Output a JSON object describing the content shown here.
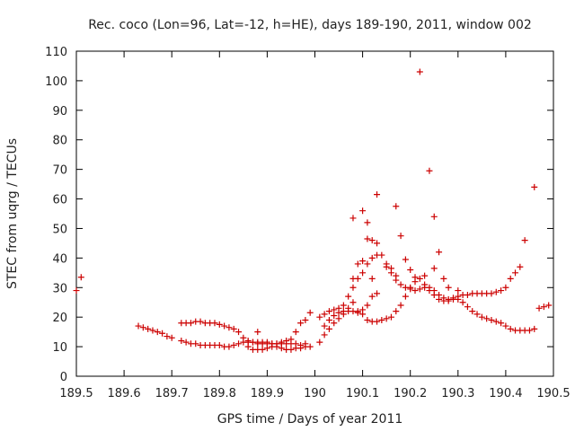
{
  "chart_data": {
    "type": "scatter",
    "title": "Rec. coco (Lon=96, Lat=-12, h=HE), days 189-190, 2011, window 002",
    "xlabel": "GPS time / Days of year 2011",
    "ylabel": "STEC from uqrg / TECUs",
    "xlim": [
      189.5,
      190.5
    ],
    "ylim": [
      0,
      110
    ],
    "xticks": [
      189.5,
      189.6,
      189.7,
      189.8,
      189.9,
      190,
      190.1,
      190.2,
      190.3,
      190.4,
      190.5
    ],
    "xtick_labels": [
      "189.5",
      "189.6",
      "189.7",
      "189.8",
      "189.9",
      "190",
      "190.1",
      "190.2",
      "190.3",
      "190.4",
      "190.5"
    ],
    "yticks": [
      0,
      10,
      20,
      30,
      40,
      50,
      60,
      70,
      80,
      90,
      100,
      110
    ],
    "ytick_labels": [
      "0",
      "10",
      "20",
      "30",
      "40",
      "50",
      "60",
      "70",
      "80",
      "90",
      "100",
      "110"
    ],
    "grid": false,
    "marker": "+",
    "color": "#cc0000",
    "points": [
      [
        189.5,
        29
      ],
      [
        189.51,
        33.5
      ],
      [
        189.63,
        17
      ],
      [
        189.64,
        16.5
      ],
      [
        189.65,
        16
      ],
      [
        189.66,
        15.5
      ],
      [
        189.67,
        15
      ],
      [
        189.68,
        14.5
      ],
      [
        189.69,
        13.5
      ],
      [
        189.7,
        13
      ],
      [
        189.72,
        12
      ],
      [
        189.73,
        11.5
      ],
      [
        189.74,
        11
      ],
      [
        189.75,
        11
      ],
      [
        189.76,
        10.5
      ],
      [
        189.77,
        10.5
      ],
      [
        189.78,
        10.5
      ],
      [
        189.79,
        10.5
      ],
      [
        189.8,
        10.5
      ],
      [
        189.81,
        10
      ],
      [
        189.82,
        10
      ],
      [
        189.83,
        10.5
      ],
      [
        189.84,
        11
      ],
      [
        189.85,
        11.5
      ],
      [
        189.86,
        11.5
      ],
      [
        189.87,
        11.5
      ],
      [
        189.88,
        11.5
      ],
      [
        189.89,
        11.5
      ],
      [
        189.9,
        11.5
      ],
      [
        189.91,
        11
      ],
      [
        189.92,
        11
      ],
      [
        189.93,
        11
      ],
      [
        189.94,
        11
      ],
      [
        189.95,
        11
      ],
      [
        189.96,
        11
      ],
      [
        189.97,
        10.5
      ],
      [
        189.98,
        11
      ],
      [
        189.72,
        18
      ],
      [
        189.73,
        18
      ],
      [
        189.74,
        18
      ],
      [
        189.75,
        18.5
      ],
      [
        189.76,
        18.5
      ],
      [
        189.77,
        18
      ],
      [
        189.78,
        18
      ],
      [
        189.79,
        18
      ],
      [
        189.8,
        17.5
      ],
      [
        189.81,
        17
      ],
      [
        189.82,
        16.5
      ],
      [
        189.83,
        16
      ],
      [
        189.84,
        15
      ],
      [
        189.85,
        13
      ],
      [
        189.86,
        12
      ],
      [
        189.87,
        11.5
      ],
      [
        189.88,
        11
      ],
      [
        189.89,
        11
      ],
      [
        189.9,
        11
      ],
      [
        189.91,
        11
      ],
      [
        189.92,
        11
      ],
      [
        189.93,
        11.5
      ],
      [
        189.94,
        12
      ],
      [
        189.95,
        12.5
      ],
      [
        189.96,
        15
      ],
      [
        189.97,
        18
      ],
      [
        189.98,
        19
      ],
      [
        189.99,
        21.5
      ],
      [
        189.86,
        10
      ],
      [
        189.87,
        9
      ],
      [
        189.88,
        9
      ],
      [
        189.89,
        9
      ],
      [
        189.9,
        9.5
      ],
      [
        189.91,
        10
      ],
      [
        189.92,
        10
      ],
      [
        189.93,
        9.5
      ],
      [
        189.94,
        9
      ],
      [
        189.95,
        9
      ],
      [
        189.96,
        9.5
      ],
      [
        189.97,
        9.5
      ],
      [
        189.98,
        10
      ],
      [
        189.99,
        10
      ],
      [
        189.88,
        15
      ],
      [
        190.01,
        11.5
      ],
      [
        190.02,
        14
      ],
      [
        190.03,
        16
      ],
      [
        190.04,
        18
      ],
      [
        190.05,
        19.5
      ],
      [
        190.06,
        21
      ],
      [
        190.07,
        22
      ],
      [
        190.08,
        22
      ],
      [
        190.09,
        21.5
      ],
      [
        190.1,
        21
      ],
      [
        190.11,
        19
      ],
      [
        190.12,
        18.5
      ],
      [
        190.13,
        18.5
      ],
      [
        190.14,
        19
      ],
      [
        190.15,
        19.5
      ],
      [
        190.16,
        20
      ],
      [
        190.17,
        22
      ],
      [
        190.18,
        24
      ],
      [
        190.19,
        27
      ],
      [
        190.2,
        30
      ],
      [
        190.21,
        32
      ],
      [
        190.22,
        33
      ],
      [
        190.23,
        31
      ],
      [
        190.24,
        29
      ],
      [
        190.25,
        27.5
      ],
      [
        190.26,
        26
      ],
      [
        190.27,
        25.5
      ],
      [
        190.28,
        25.5
      ],
      [
        190.29,
        26
      ],
      [
        190.3,
        26
      ],
      [
        190.31,
        25
      ],
      [
        190.32,
        23.5
      ],
      [
        190.33,
        22
      ],
      [
        190.34,
        21
      ],
      [
        190.35,
        20
      ],
      [
        190.36,
        19.5
      ],
      [
        190.37,
        19
      ],
      [
        190.38,
        18.5
      ],
      [
        190.39,
        18
      ],
      [
        190.4,
        17
      ],
      [
        190.41,
        16
      ],
      [
        190.42,
        15.5
      ],
      [
        190.43,
        15.5
      ],
      [
        190.44,
        15.5
      ],
      [
        190.45,
        15.5
      ],
      [
        190.46,
        16
      ],
      [
        190.01,
        20
      ],
      [
        190.02,
        21
      ],
      [
        190.03,
        22
      ],
      [
        190.04,
        22.5
      ],
      [
        190.05,
        23
      ],
      [
        190.06,
        24
      ],
      [
        190.07,
        27
      ],
      [
        190.08,
        30
      ],
      [
        190.09,
        33
      ],
      [
        190.1,
        35
      ],
      [
        190.11,
        38
      ],
      [
        190.12,
        40
      ],
      [
        190.13,
        41
      ],
      [
        190.14,
        41
      ],
      [
        190.15,
        38
      ],
      [
        190.16,
        35
      ],
      [
        190.17,
        32.5
      ],
      [
        190.18,
        31
      ],
      [
        190.19,
        30
      ],
      [
        190.2,
        29.5
      ],
      [
        190.21,
        29
      ],
      [
        190.22,
        29.5
      ],
      [
        190.23,
        30
      ],
      [
        190.24,
        30
      ],
      [
        190.25,
        29
      ],
      [
        190.26,
        27.5
      ],
      [
        190.27,
        26.5
      ],
      [
        190.28,
        26
      ],
      [
        190.29,
        26.5
      ],
      [
        190.3,
        27
      ],
      [
        190.31,
        27.5
      ],
      [
        190.32,
        27.5
      ],
      [
        190.33,
        28
      ],
      [
        190.34,
        28
      ],
      [
        190.35,
        28
      ],
      [
        190.36,
        28
      ],
      [
        190.37,
        28
      ],
      [
        190.38,
        28.5
      ],
      [
        190.39,
        29
      ],
      [
        190.4,
        30
      ],
      [
        190.41,
        33
      ],
      [
        190.42,
        35
      ],
      [
        190.43,
        37
      ],
      [
        190.44,
        46
      ],
      [
        190.46,
        64
      ],
      [
        190.47,
        23
      ],
      [
        190.48,
        23.5
      ],
      [
        190.49,
        24
      ],
      [
        190.02,
        17
      ],
      [
        190.03,
        19
      ],
      [
        190.04,
        20.5
      ],
      [
        190.05,
        21.5
      ],
      [
        190.06,
        22
      ],
      [
        190.07,
        23
      ],
      [
        190.08,
        25
      ],
      [
        190.09,
        22
      ],
      [
        190.1,
        22.5
      ],
      [
        190.11,
        24
      ],
      [
        190.12,
        27
      ],
      [
        190.13,
        28
      ],
      [
        190.08,
        53.5
      ],
      [
        190.1,
        56
      ],
      [
        190.11,
        52
      ],
      [
        190.12,
        46
      ],
      [
        190.13,
        45
      ],
      [
        190.13,
        61.5
      ],
      [
        190.16,
        36.5
      ],
      [
        190.17,
        57.5
      ],
      [
        190.17,
        34
      ],
      [
        190.18,
        47.5
      ],
      [
        190.19,
        39.5
      ],
      [
        190.2,
        36
      ],
      [
        190.21,
        33.5
      ],
      [
        190.22,
        103
      ],
      [
        190.23,
        34
      ],
      [
        190.24,
        69.5
      ],
      [
        190.25,
        54
      ],
      [
        190.25,
        36.5
      ],
      [
        190.26,
        42
      ],
      [
        190.27,
        33
      ],
      [
        190.28,
        30
      ],
      [
        190.3,
        29
      ],
      [
        190.08,
        33
      ],
      [
        190.09,
        38
      ],
      [
        190.1,
        39
      ],
      [
        190.11,
        46.5
      ],
      [
        190.12,
        33
      ],
      [
        190.15,
        37
      ]
    ]
  }
}
